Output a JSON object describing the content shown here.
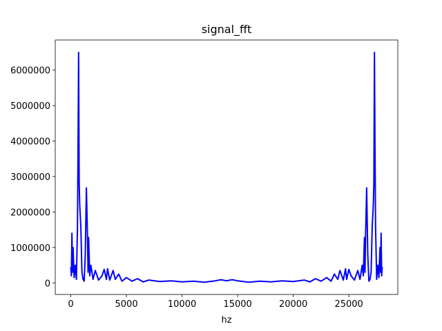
{
  "chart_data": {
    "type": "line",
    "title": "signal_fft",
    "xlabel": "hz",
    "xlim": [
      -1400,
      29400
    ],
    "ylim": [
      -325000,
      6850000
    ],
    "xticks": [
      0,
      5000,
      10000,
      15000,
      20000,
      25000
    ],
    "yticks": [
      0,
      1000000,
      2000000,
      3000000,
      4000000,
      5000000,
      6000000
    ],
    "grid": false,
    "x": [
      0,
      50,
      100,
      150,
      200,
      300,
      400,
      500,
      600,
      650,
      700,
      750,
      800,
      900,
      1000,
      1100,
      1200,
      1300,
      1400,
      1500,
      1550,
      1600,
      1700,
      1800,
      2000,
      2200,
      2500,
      2800,
      3000,
      3200,
      3300,
      3500,
      3800,
      4000,
      4300,
      4600,
      5000,
      5500,
      6000,
      6500,
      7000,
      8000,
      9000,
      10000,
      11000,
      12000,
      13000,
      13500,
      14000,
      14500,
      15000,
      16000,
      17000,
      18000,
      19000,
      20000,
      21000,
      21500,
      22000,
      22500,
      23000,
      23400,
      23700,
      24000,
      24200,
      24500,
      24700,
      24800,
      25000,
      25200,
      25500,
      25800,
      26000,
      26200,
      26300,
      26400,
      26450,
      26500,
      26600,
      26700,
      26800,
      26900,
      27000,
      27100,
      27200,
      27250,
      27300,
      27350,
      27400,
      27500,
      27600,
      27700,
      27800,
      27850,
      27900,
      27950,
      28000
    ],
    "series": [
      {
        "name": "signal_fft",
        "color": "#0000ff",
        "values": [
          450000,
          200000,
          1400000,
          300000,
          1000000,
          150000,
          500000,
          100000,
          1600000,
          3850000,
          6500000,
          2850000,
          2200000,
          1600000,
          300000,
          100000,
          50000,
          800000,
          2680000,
          1300000,
          300000,
          1280000,
          200000,
          500000,
          100000,
          350000,
          80000,
          200000,
          380000,
          100000,
          400000,
          80000,
          350000,
          100000,
          250000,
          50000,
          150000,
          50000,
          120000,
          30000,
          80000,
          40000,
          60000,
          30000,
          50000,
          20000,
          60000,
          90000,
          60000,
          90000,
          60000,
          20000,
          50000,
          30000,
          60000,
          40000,
          80000,
          30000,
          120000,
          50000,
          150000,
          50000,
          250000,
          100000,
          350000,
          80000,
          400000,
          100000,
          380000,
          200000,
          80000,
          350000,
          100000,
          500000,
          200000,
          1280000,
          300000,
          1300000,
          2680000,
          800000,
          50000,
          100000,
          300000,
          1600000,
          2200000,
          2850000,
          6500000,
          3850000,
          1600000,
          100000,
          500000,
          150000,
          1000000,
          300000,
          1400000,
          200000,
          450000
        ]
      }
    ]
  }
}
